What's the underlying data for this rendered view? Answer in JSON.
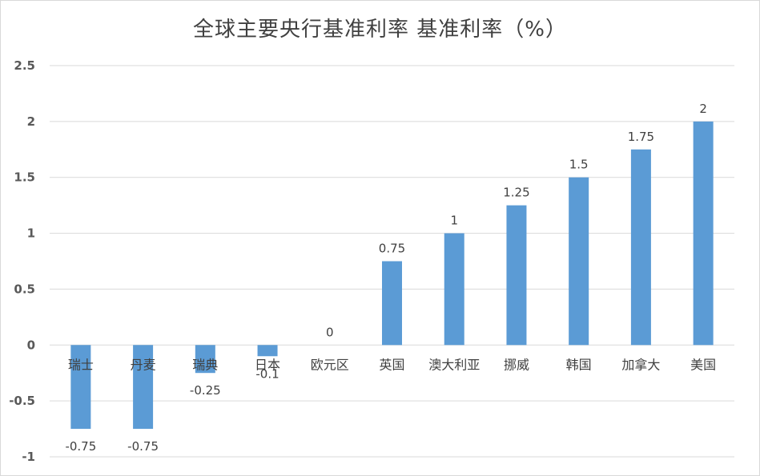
{
  "chart_data": {
    "type": "bar",
    "title": "全球主要央行基准利率 基准利率（%）",
    "categories": [
      "瑞士",
      "丹麦",
      "瑞典",
      "日本",
      "欧元区",
      "英国",
      "澳大利亚",
      "挪威",
      "韩国",
      "加拿大",
      "美国"
    ],
    "values": [
      -0.75,
      -0.75,
      -0.25,
      -0.1,
      0,
      0.75,
      1,
      1.25,
      1.5,
      1.75,
      2
    ],
    "data_labels": [
      "-0.75",
      "-0.75",
      "-0.25",
      "-0.1",
      "0",
      "0.75",
      "1",
      "1.25",
      "1.5",
      "1.75",
      "2"
    ],
    "ylim": [
      -1,
      2.5
    ],
    "yticks": [
      "2.5",
      "2",
      "1.5",
      "1",
      "0.5",
      "0",
      "-0.5",
      "-1"
    ],
    "ytick_values": [
      2.5,
      2,
      1.5,
      1,
      0.5,
      0,
      -0.5,
      -1
    ],
    "grid": true,
    "bar_color": "#5b9bd5",
    "grid_color": "#d9d9d9"
  }
}
